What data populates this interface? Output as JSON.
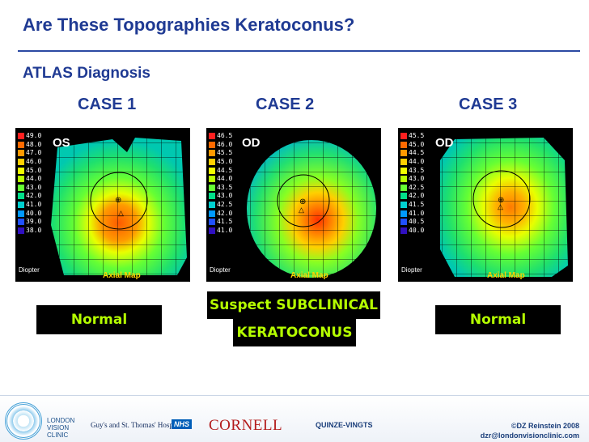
{
  "title": "Are These Topographies Keratoconus?",
  "subtitle": "ATLAS Diagnosis",
  "cases": [
    {
      "label": "CASE 1",
      "eye": "OS",
      "scale": [
        "49.0",
        "48.0",
        "47.0",
        "46.0",
        "45.0",
        "44.0",
        "43.0",
        "42.0",
        "41.0",
        "40.0",
        "39.0",
        "38.0"
      ],
      "diagnosis": [
        "Normal"
      ]
    },
    {
      "label": "CASE 2",
      "eye": "OD",
      "scale": [
        "46.5",
        "46.0",
        "45.5",
        "45.0",
        "44.5",
        "44.0",
        "43.5",
        "43.0",
        "42.5",
        "42.0",
        "41.5",
        "41.0"
      ],
      "diagnosis": [
        "Suspect SUBCLINICAL",
        "KERATOCONUS"
      ]
    },
    {
      "label": "CASE 3",
      "eye": "OD",
      "scale": [
        "45.5",
        "45.0",
        "44.5",
        "44.0",
        "43.5",
        "43.0",
        "42.5",
        "42.0",
        "41.5",
        "41.0",
        "40.5",
        "40.0"
      ],
      "diagnosis": [
        "Normal"
      ]
    }
  ],
  "map_caption": "Axial Map",
  "scale_unit": "Diopter",
  "scale_colors": [
    "#ff2020",
    "#ff6a00",
    "#ff9a00",
    "#ffd000",
    "#f0ff00",
    "#b8ff00",
    "#66ff33",
    "#00e08a",
    "#00d0d0",
    "#0099ff",
    "#2050ff",
    "#3010c0"
  ],
  "footer": {
    "clinic": [
      "LONDON",
      "VISION",
      "CLINIC"
    ],
    "guys": "Guy's and St. Thomas' Hospital",
    "nhs": "NHS",
    "cornell": "CORNELL",
    "quinze": "QUINZE-VINGTS",
    "credit": "©DZ Reinstein 2008",
    "email": "dzr@londonvisionclinic.com"
  }
}
